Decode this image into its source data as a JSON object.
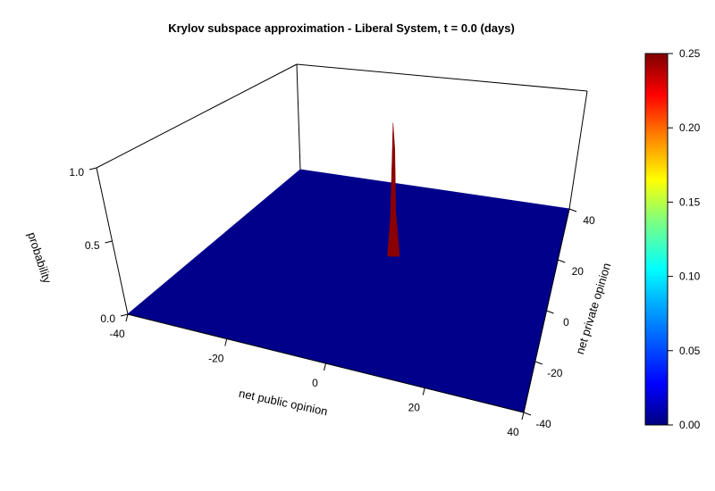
{
  "chart_data": {
    "type": "surface",
    "title": "Krylov subspace approximation - Liberal System, t = 0.0 (days)",
    "xlabel": "net public opinion",
    "ylabel": "net private opinion",
    "zlabel": "probability",
    "x_range": [
      -40,
      40
    ],
    "y_range": [
      -40,
      40
    ],
    "z_range": [
      0,
      1
    ],
    "x_ticks": [
      "-40",
      "-20",
      "0",
      "20",
      "40"
    ],
    "y_ticks": [
      "-40",
      "-20",
      "0",
      "20",
      "40"
    ],
    "z_ticks": [
      "0.0",
      "0.5",
      "1.0"
    ],
    "surface_base_value": 0.0,
    "peak": {
      "x": 0,
      "y": 10,
      "z": 0.9
    },
    "surface_color": "#00008B",
    "peak_color": "#8B0000",
    "colorbar": {
      "ticks": [
        "0.00",
        "0.05",
        "0.10",
        "0.15",
        "0.20",
        "0.25"
      ],
      "range": [
        0,
        0.25
      ],
      "colormap": [
        "#00007F",
        "#0000FF",
        "#007FFF",
        "#00FFFF",
        "#7FFF7F",
        "#FFFF00",
        "#FF7F00",
        "#FF0000",
        "#7F0000"
      ]
    }
  }
}
